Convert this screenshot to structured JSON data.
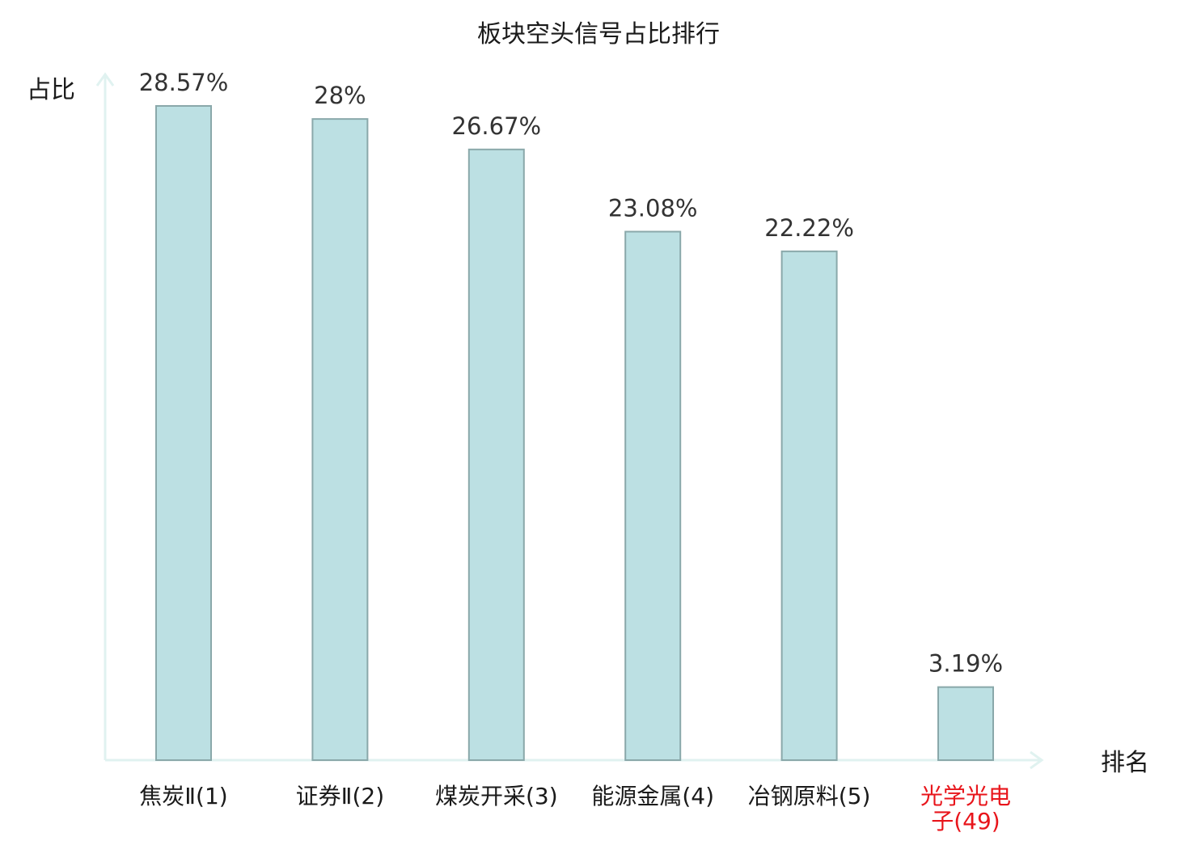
{
  "colors": {
    "bar_fill": "#bce0e3",
    "bar_stroke": "#8aa8aa",
    "axis": "#e0f2f0",
    "text": "#1a1a1a",
    "highlight": "#e8151b"
  },
  "chart_data": {
    "type": "bar",
    "title": "板块空头信号占比排行",
    "ylabel": "占比",
    "xlabel": "排名",
    "ylim": [
      0,
      30
    ],
    "grid": false,
    "categories": [
      "焦炭Ⅱ(1)",
      "证券Ⅱ(2)",
      "煤炭开采(3)",
      "能源金属(4)",
      "冶钢原料(5)",
      "光学光电子(49)"
    ],
    "category_lines": [
      [
        "焦炭Ⅱ(1)"
      ],
      [
        "证券Ⅱ(2)"
      ],
      [
        "煤炭开采(3)"
      ],
      [
        "能源金属(4)"
      ],
      [
        "冶钢原料(5)"
      ],
      [
        "光学光电",
        "子(49)"
      ]
    ],
    "values": [
      28.57,
      28,
      26.67,
      23.08,
      22.22,
      3.19
    ],
    "value_labels": [
      "28.57%",
      "28%",
      "26.67%",
      "23.08%",
      "22.22%",
      "3.19%"
    ],
    "highlight_index": 5
  }
}
